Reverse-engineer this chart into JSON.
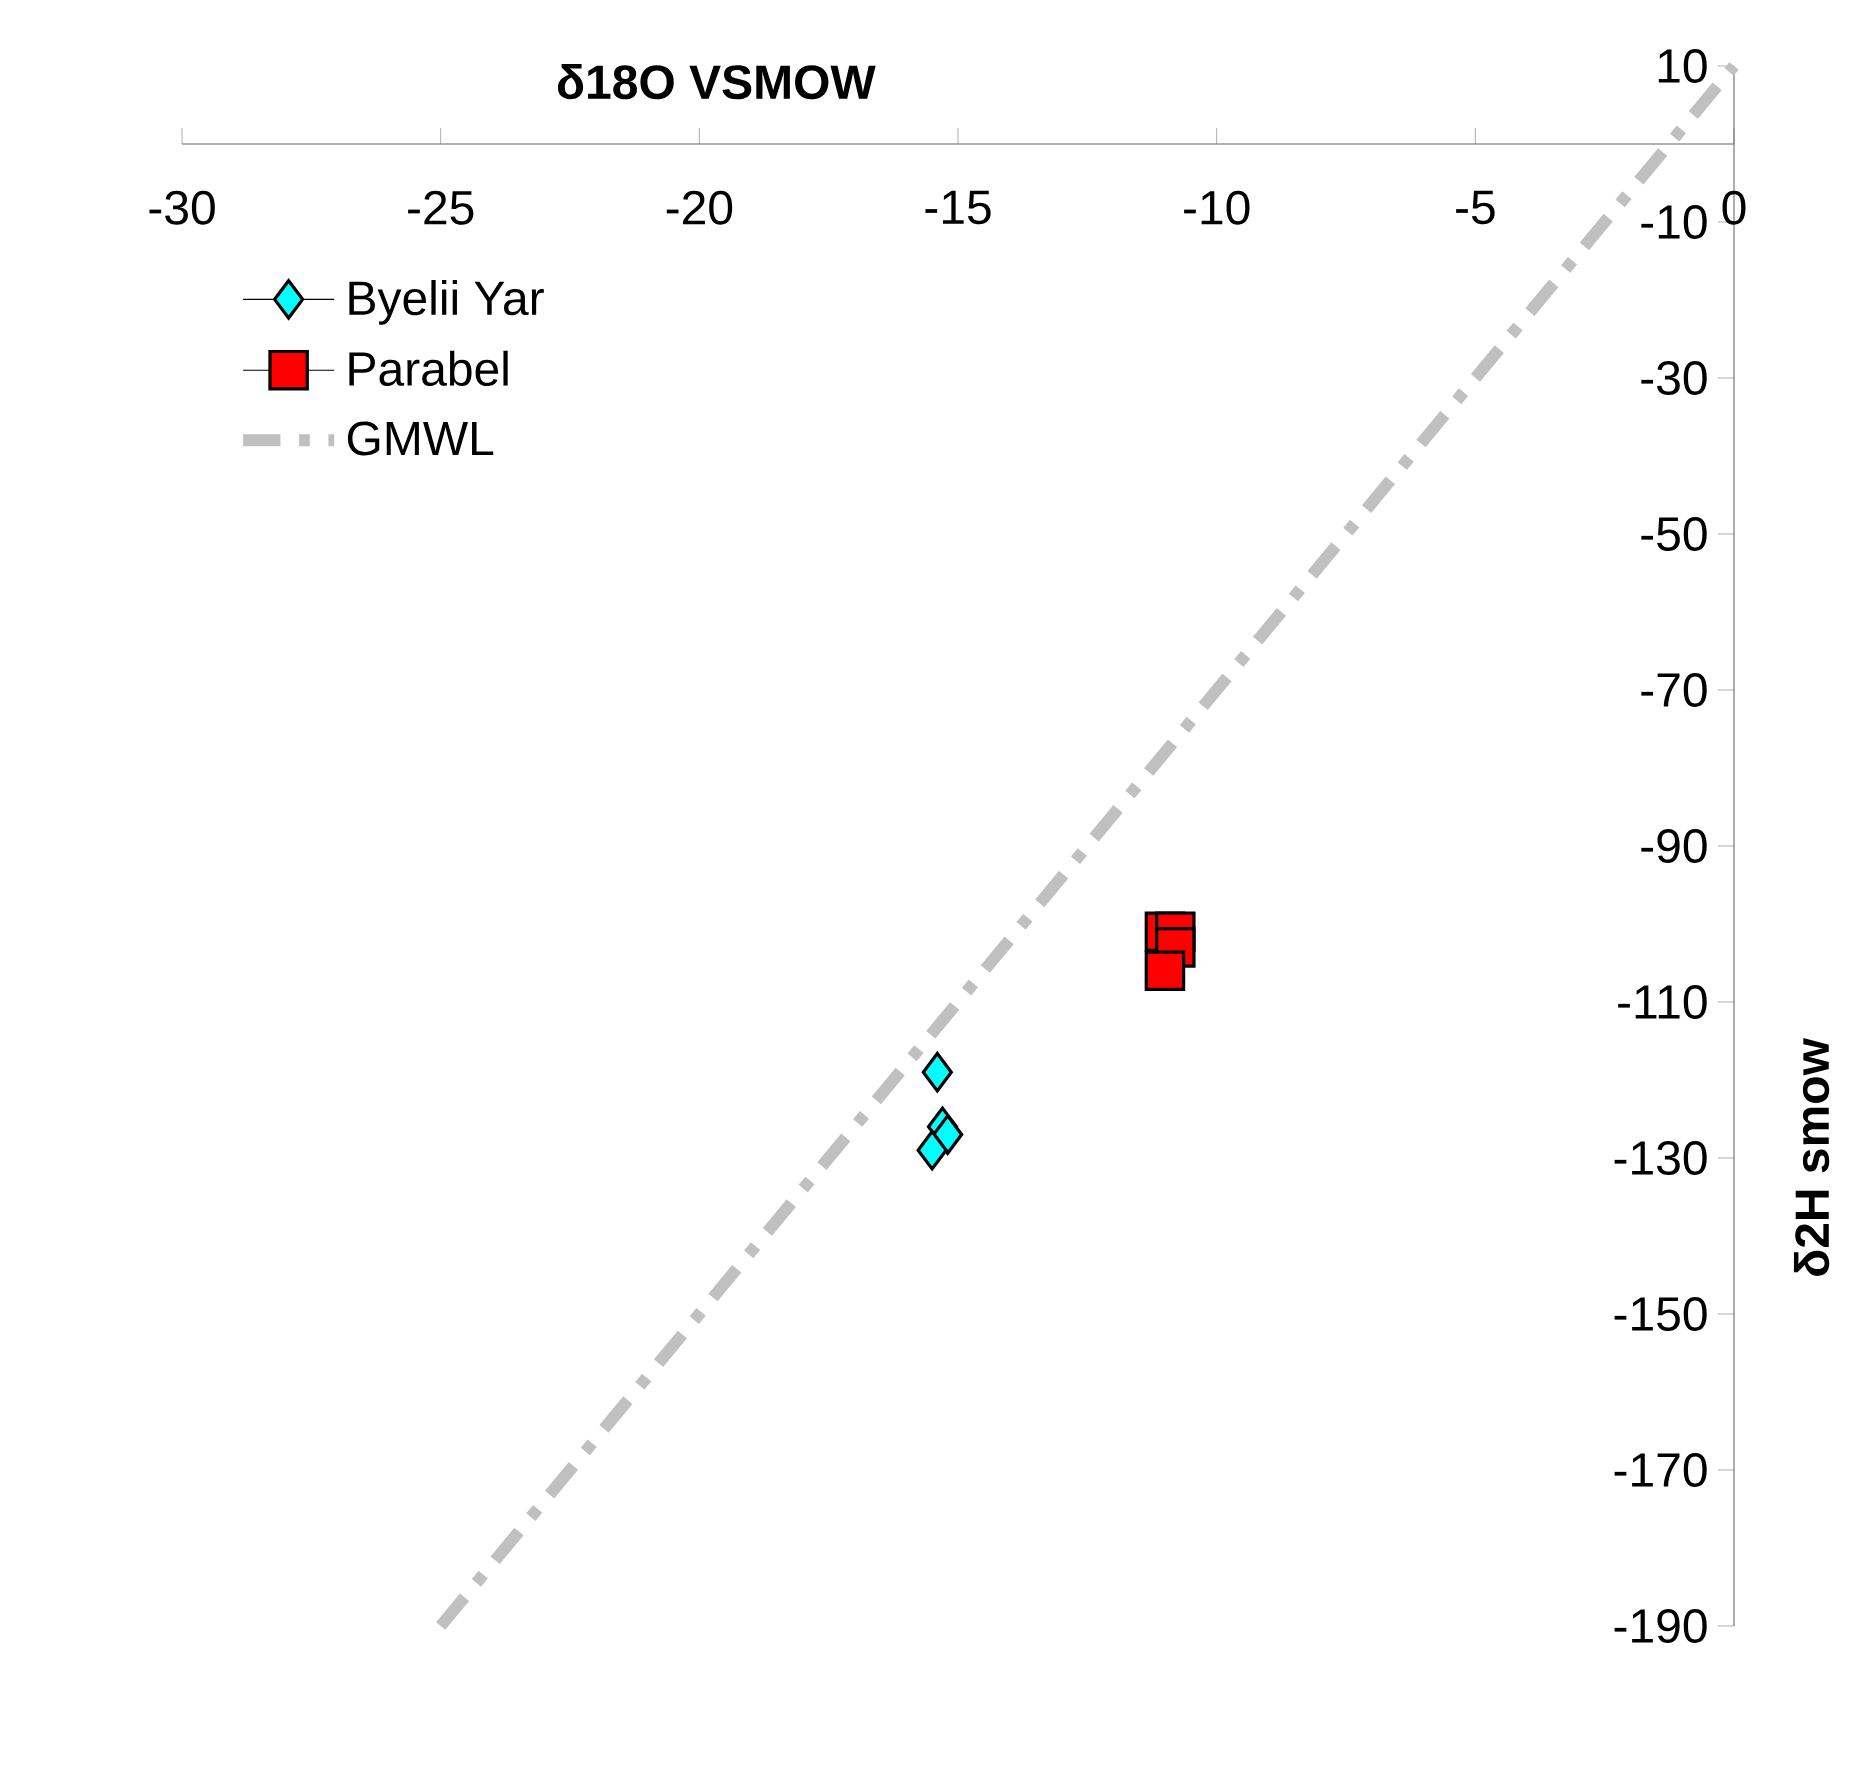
{
  "chart_data": {
    "type": "scatter",
    "xlabel": "δ18O VSMOW",
    "ylabel": "δ2H smow",
    "xlim": [
      -30,
      0
    ],
    "ylim": [
      -190,
      10
    ],
    "xticks": [
      -30,
      -25,
      -20,
      -15,
      -10,
      -5,
      0
    ],
    "yticks": [
      10,
      -10,
      -30,
      -50,
      -70,
      -90,
      -110,
      -130,
      -150,
      -170,
      -190
    ],
    "legend": "top left",
    "series": [
      {
        "name": "Byelii Yar",
        "color": "#00ffff",
        "marker": "diamond",
        "x": [
          -15.4,
          -15.3,
          -15.2,
          -15.5
        ],
        "values": [
          -119,
          -126,
          -127,
          -129
        ]
      },
      {
        "name": "Parabel",
        "color": "#ff0000",
        "marker": "square",
        "x": [
          -11.0,
          -10.8,
          -10.8,
          -11.0
        ],
        "values": [
          -101,
          -101,
          -103,
          -106
        ]
      },
      {
        "name": "GMWL",
        "type": "line",
        "color": "#c0c0c0",
        "line_style": "dashed",
        "marker": "none",
        "x": [
          -25,
          0
        ],
        "values": [
          -190,
          10
        ]
      }
    ]
  }
}
